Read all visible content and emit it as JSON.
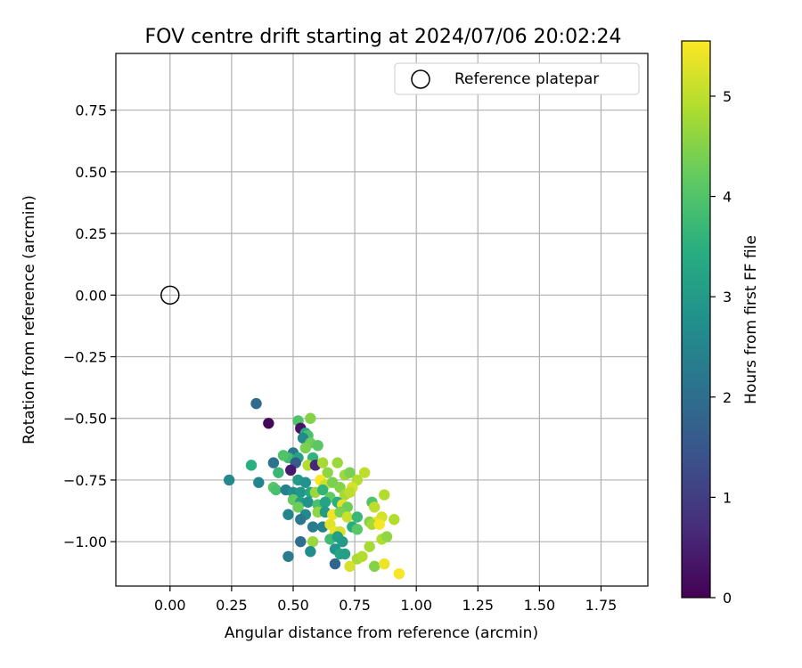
{
  "chart_data": {
    "type": "scatter",
    "title": "FOV centre drift starting at 2024/07/06 20:02:24",
    "xlabel": "Angular distance from reference (arcmin)",
    "ylabel": "Rotation from reference (arcmin)",
    "xlim": [
      -0.22,
      1.94
    ],
    "ylim": [
      -1.18,
      0.98
    ],
    "xticks": [
      "0.00",
      "0.25",
      "0.50",
      "0.75",
      "1.00",
      "1.25",
      "1.50",
      "1.75"
    ],
    "yticks": [
      "0.75",
      "0.50",
      "0.25",
      "0.00",
      "−0.25",
      "−0.50",
      "−0.75",
      "−1.00"
    ],
    "grid": true,
    "legend": {
      "placement": "upper right",
      "entries": [
        "Reference platepar"
      ]
    },
    "reference_point": {
      "x": 0.0,
      "y": 0.0
    },
    "colorbar": {
      "label": "Hours from first FF file",
      "ticks": [
        "0",
        "1",
        "2",
        "3",
        "4",
        "5"
      ],
      "range": [
        0,
        5.55
      ],
      "colormap": "viridis"
    },
    "points": [
      {
        "x": 0.35,
        "y": -0.44,
        "h": 1.9
      },
      {
        "x": 0.4,
        "y": -0.52,
        "h": 0.1
      },
      {
        "x": 0.57,
        "y": -0.5,
        "h": 4.5
      },
      {
        "x": 0.52,
        "y": -0.51,
        "h": 4.0
      },
      {
        "x": 0.53,
        "y": -0.54,
        "h": 0.3
      },
      {
        "x": 0.55,
        "y": -0.56,
        "h": 3.4
      },
      {
        "x": 0.56,
        "y": -0.57,
        "h": 3.9
      },
      {
        "x": 0.54,
        "y": -0.58,
        "h": 2.6
      },
      {
        "x": 0.57,
        "y": -0.6,
        "h": 4.3
      },
      {
        "x": 0.6,
        "y": -0.61,
        "h": 4.1
      },
      {
        "x": 0.55,
        "y": -0.62,
        "h": 4.4
      },
      {
        "x": 0.5,
        "y": -0.64,
        "h": 2.2
      },
      {
        "x": 0.48,
        "y": -0.66,
        "h": 3.8
      },
      {
        "x": 0.46,
        "y": -0.65,
        "h": 4.0
      },
      {
        "x": 0.52,
        "y": -0.66,
        "h": 3.2
      },
      {
        "x": 0.58,
        "y": -0.66,
        "h": 3.6
      },
      {
        "x": 0.51,
        "y": -0.68,
        "h": 1.6
      },
      {
        "x": 0.42,
        "y": -0.68,
        "h": 2.1
      },
      {
        "x": 0.33,
        "y": -0.69,
        "h": 3.5
      },
      {
        "x": 0.56,
        "y": -0.69,
        "h": 4.9
      },
      {
        "x": 0.59,
        "y": -0.69,
        "h": 0.6
      },
      {
        "x": 0.62,
        "y": -0.68,
        "h": 4.8
      },
      {
        "x": 0.68,
        "y": -0.68,
        "h": 4.7
      },
      {
        "x": 0.49,
        "y": -0.71,
        "h": 0.4
      },
      {
        "x": 0.44,
        "y": -0.72,
        "h": 3.7
      },
      {
        "x": 0.64,
        "y": -0.72,
        "h": 4.6
      },
      {
        "x": 0.71,
        "y": -0.73,
        "h": 4.7
      },
      {
        "x": 0.73,
        "y": -0.72,
        "h": 4.4
      },
      {
        "x": 0.79,
        "y": -0.72,
        "h": 5.0
      },
      {
        "x": 0.24,
        "y": -0.75,
        "h": 2.6
      },
      {
        "x": 0.36,
        "y": -0.76,
        "h": 2.5
      },
      {
        "x": 0.52,
        "y": -0.75,
        "h": 3.0
      },
      {
        "x": 0.55,
        "y": -0.76,
        "h": 2.8
      },
      {
        "x": 0.61,
        "y": -0.75,
        "h": 5.5
      },
      {
        "x": 0.63,
        "y": -0.77,
        "h": 5.1
      },
      {
        "x": 0.66,
        "y": -0.76,
        "h": 4.4
      },
      {
        "x": 0.69,
        "y": -0.78,
        "h": 4.5
      },
      {
        "x": 0.76,
        "y": -0.75,
        "h": 4.9
      },
      {
        "x": 0.74,
        "y": -0.78,
        "h": 5.2
      },
      {
        "x": 0.42,
        "y": -0.78,
        "h": 4.1
      },
      {
        "x": 0.43,
        "y": -0.79,
        "h": 3.9
      },
      {
        "x": 0.47,
        "y": -0.79,
        "h": 2.4
      },
      {
        "x": 0.5,
        "y": -0.8,
        "h": 2.7
      },
      {
        "x": 0.53,
        "y": -0.8,
        "h": 2.9
      },
      {
        "x": 0.57,
        "y": -0.8,
        "h": 3.3
      },
      {
        "x": 0.59,
        "y": -0.8,
        "h": 4.7
      },
      {
        "x": 0.62,
        "y": -0.79,
        "h": 3.6
      },
      {
        "x": 0.65,
        "y": -0.82,
        "h": 4.2
      },
      {
        "x": 0.71,
        "y": -0.81,
        "h": 4.8
      },
      {
        "x": 0.73,
        "y": -0.8,
        "h": 5.0
      },
      {
        "x": 0.87,
        "y": -0.81,
        "h": 4.9
      },
      {
        "x": 0.5,
        "y": -0.83,
        "h": 4.2
      },
      {
        "x": 0.53,
        "y": -0.84,
        "h": 3.1
      },
      {
        "x": 0.56,
        "y": -0.84,
        "h": 2.8
      },
      {
        "x": 0.6,
        "y": -0.85,
        "h": 3.9
      },
      {
        "x": 0.63,
        "y": -0.84,
        "h": 3.2
      },
      {
        "x": 0.68,
        "y": -0.84,
        "h": 3.5
      },
      {
        "x": 0.7,
        "y": -0.85,
        "h": 5.3
      },
      {
        "x": 0.72,
        "y": -0.86,
        "h": 4.3
      },
      {
        "x": 0.82,
        "y": -0.84,
        "h": 4.0
      },
      {
        "x": 0.83,
        "y": -0.86,
        "h": 5.0
      },
      {
        "x": 0.52,
        "y": -0.86,
        "h": 4.3
      },
      {
        "x": 0.48,
        "y": -0.89,
        "h": 2.5
      },
      {
        "x": 0.55,
        "y": -0.89,
        "h": 2.6
      },
      {
        "x": 0.6,
        "y": -0.88,
        "h": 4.6
      },
      {
        "x": 0.63,
        "y": -0.88,
        "h": 3.0
      },
      {
        "x": 0.66,
        "y": -0.89,
        "h": 5.4
      },
      {
        "x": 0.69,
        "y": -0.88,
        "h": 4.4
      },
      {
        "x": 0.72,
        "y": -0.9,
        "h": 5.1
      },
      {
        "x": 0.76,
        "y": -0.9,
        "h": 3.7
      },
      {
        "x": 0.81,
        "y": -0.92,
        "h": 4.5
      },
      {
        "x": 0.84,
        "y": -0.92,
        "h": 5.4
      },
      {
        "x": 0.86,
        "y": -0.9,
        "h": 5.2
      },
      {
        "x": 0.91,
        "y": -0.91,
        "h": 4.9
      },
      {
        "x": 0.53,
        "y": -0.91,
        "h": 2.2
      },
      {
        "x": 0.58,
        "y": -0.94,
        "h": 2.3
      },
      {
        "x": 0.62,
        "y": -0.94,
        "h": 2.4
      },
      {
        "x": 0.65,
        "y": -0.93,
        "h": 5.3
      },
      {
        "x": 0.67,
        "y": -0.96,
        "h": 5.4
      },
      {
        "x": 0.69,
        "y": -0.96,
        "h": 5.2
      },
      {
        "x": 0.74,
        "y": -0.94,
        "h": 3.4
      },
      {
        "x": 0.76,
        "y": -0.95,
        "h": 4.1
      },
      {
        "x": 0.82,
        "y": -0.93,
        "h": 4.8
      },
      {
        "x": 0.85,
        "y": -0.93,
        "h": 5.5
      },
      {
        "x": 0.53,
        "y": -1.0,
        "h": 2.0
      },
      {
        "x": 0.58,
        "y": -1.0,
        "h": 4.7
      },
      {
        "x": 0.65,
        "y": -0.99,
        "h": 3.8
      },
      {
        "x": 0.68,
        "y": -0.98,
        "h": 3.1
      },
      {
        "x": 0.7,
        "y": -1.0,
        "h": 3.0
      },
      {
        "x": 0.81,
        "y": -1.02,
        "h": 4.8
      },
      {
        "x": 0.86,
        "y": -0.99,
        "h": 4.9
      },
      {
        "x": 0.88,
        "y": -0.98,
        "h": 4.6
      },
      {
        "x": 0.57,
        "y": -1.04,
        "h": 2.7
      },
      {
        "x": 0.67,
        "y": -1.03,
        "h": 2.9
      },
      {
        "x": 0.69,
        "y": -1.05,
        "h": 3.2
      },
      {
        "x": 0.71,
        "y": -1.05,
        "h": 3.1
      },
      {
        "x": 0.48,
        "y": -1.06,
        "h": 2.3
      },
      {
        "x": 0.76,
        "y": -1.07,
        "h": 4.8
      },
      {
        "x": 0.78,
        "y": -1.06,
        "h": 4.9
      },
      {
        "x": 0.67,
        "y": -1.09,
        "h": 1.8
      },
      {
        "x": 0.73,
        "y": -1.1,
        "h": 5.2
      },
      {
        "x": 0.83,
        "y": -1.1,
        "h": 4.5
      },
      {
        "x": 0.87,
        "y": -1.09,
        "h": 5.4
      },
      {
        "x": 0.93,
        "y": -1.13,
        "h": 5.5
      }
    ]
  }
}
